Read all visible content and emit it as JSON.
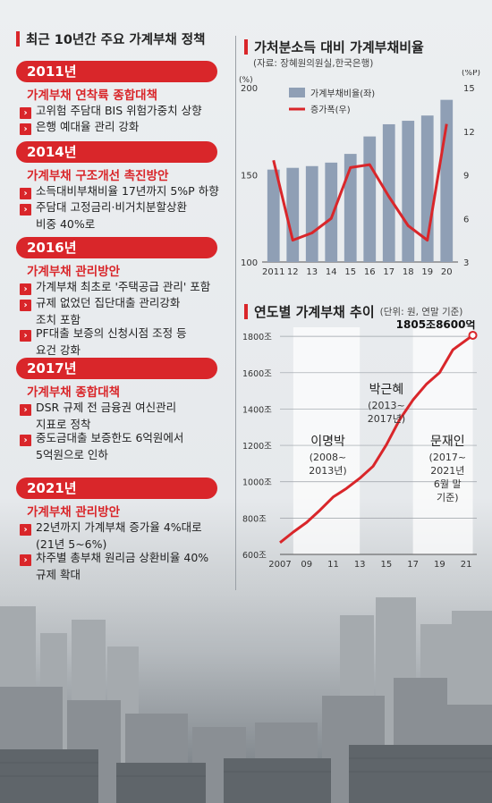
{
  "left": {
    "title": "최근 10년간 주요 가계부채 정책",
    "sections": [
      {
        "year": "2011년",
        "policy": "가계부채 연착륙 종합대책",
        "items": [
          [
            "고위험 주담대 BIS 위험가중치 상향"
          ],
          [
            "은행 예대율 관리 강화"
          ]
        ]
      },
      {
        "year": "2014년",
        "policy": "가계부채 구조개선 촉진방안",
        "items": [
          [
            "소득대비부채비율 17년까지 5%P 하향"
          ],
          [
            "주담대 고정금리·비거치분할상환",
            "비중 40%로"
          ]
        ]
      },
      {
        "year": "2016년",
        "policy": "가계부채 관리방안",
        "items": [
          [
            "가계부채 최초로 '주택공급 관리' 포함"
          ],
          [
            "규제 없었던 집단대출 관리강화",
            "조치 포함"
          ],
          [
            "PF대출 보증의 신청시점 조정 등",
            "요건 강화"
          ]
        ]
      },
      {
        "year": "2017년",
        "policy": "가계부채 종합대책",
        "items": [
          [
            "DSR 규제 전 금융권 여신관리",
            "지표로 정착"
          ],
          [
            "중도금대출 보증한도 6억원에서",
            "5억원으로 인하"
          ]
        ]
      },
      {
        "year": "2021년",
        "policy": "가계부채 관리방안",
        "items": [
          [
            "22년까지 가계부채 증가율 4%대로",
            "(21년 5~6%)"
          ],
          [
            "차주별 총부채 원리금 상환비율 40%",
            "규제 확대"
          ]
        ]
      }
    ]
  },
  "chart1": {
    "title": "가처분소득 대비 가계부채비율",
    "source": "(자료: 장혜원의원실,한국은행)",
    "left_unit": "(%)",
    "right_unit": "(%P)"
  },
  "chart2": {
    "title": "연도별 가계부채 추이",
    "unit_note": "(단위: 원, 연말 기준)",
    "peak_label": "1805조8600억"
  },
  "chart_data": [
    {
      "type": "bar",
      "title": "가처분소득 대비 가계부채비율",
      "categories": [
        "2011",
        "12",
        "13",
        "14",
        "15",
        "16",
        "17",
        "18",
        "19",
        "20"
      ],
      "series": [
        {
          "name": "가계부채비율(좌)",
          "type": "bar",
          "axis": "left",
          "color": "#8f9fb5",
          "values": [
            153,
            154,
            155,
            157,
            162,
            172,
            179,
            181,
            184,
            193
          ]
        },
        {
          "name": "증가폭(우)",
          "type": "line",
          "axis": "right",
          "color": "#d9262a",
          "values": [
            10,
            4.5,
            5,
            6,
            9.5,
            9.7,
            7.5,
            5.5,
            4.5,
            12.5
          ]
        }
      ],
      "ylim_left": [
        100,
        200
      ],
      "left_ticks": [
        "100",
        "150",
        "200"
      ],
      "ylim_right": [
        3,
        15
      ],
      "right_ticks": [
        "3",
        "6",
        "9",
        "12",
        "15"
      ]
    },
    {
      "type": "line",
      "title": "연도별 가계부채 추이",
      "x": [
        2007,
        2008,
        2009,
        2010,
        2011,
        2012,
        2013,
        2014,
        2015,
        2016,
        2017,
        2018,
        2019,
        2020,
        2021.5
      ],
      "xticks": [
        "2007",
        "09",
        "11",
        "13",
        "15",
        "17",
        "19",
        "21"
      ],
      "values": [
        665,
        723,
        776,
        843,
        916,
        963,
        1019,
        1085,
        1203,
        1342,
        1450,
        1536,
        1600,
        1726,
        1806
      ],
      "ylim": [
        600,
        1850
      ],
      "yticks": [
        "600조",
        "800조",
        "1000조",
        "1200조",
        "1400조",
        "1600조",
        "1800조"
      ],
      "color": "#d9262a",
      "periods": [
        {
          "name": "이명박",
          "years": "(2008~",
          "years2": "2013년)"
        },
        {
          "name": "박근혜",
          "years": "(2013~",
          "years2": "2017년)"
        },
        {
          "name": "문재인",
          "years": "(2017~",
          "years2": "2021년",
          "years3": "6월 말",
          "years4": "기준)"
        }
      ]
    }
  ]
}
